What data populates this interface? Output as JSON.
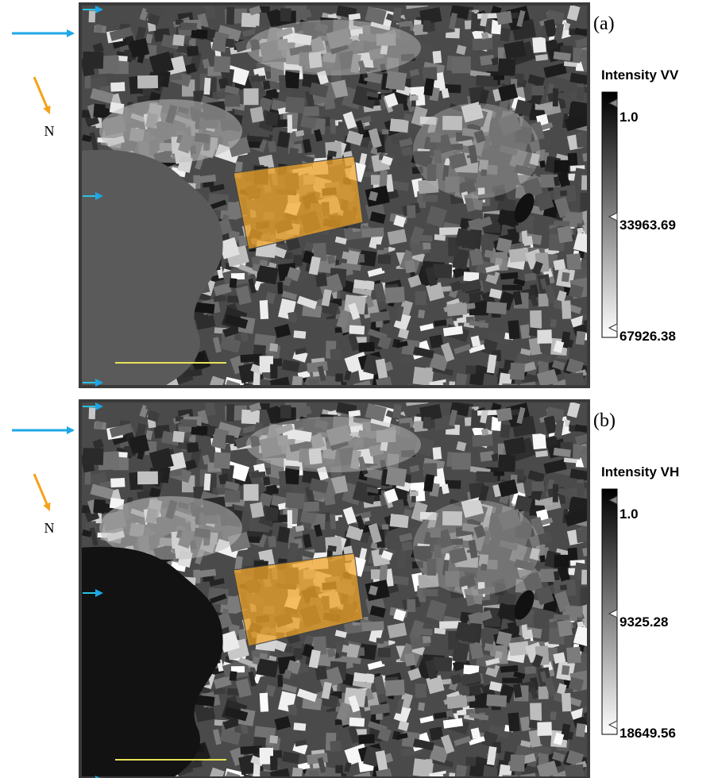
{
  "panels": [
    {
      "label": "(a)",
      "north": "N",
      "colorbar": {
        "title": "Intensity VV",
        "ticks": [
          "1.0",
          "33963.69",
          "67926.38"
        ]
      }
    },
    {
      "label": "(b)",
      "north": "N",
      "colorbar": {
        "title": "Intensity VH",
        "ticks": [
          "1.0",
          "9325.28",
          "18649.56"
        ]
      }
    }
  ]
}
